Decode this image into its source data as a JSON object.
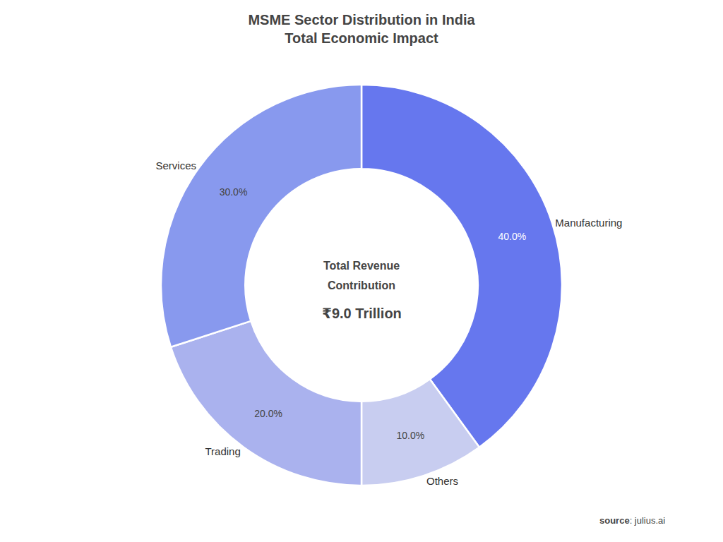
{
  "chart_data": {
    "type": "donut",
    "title": "MSME Sector Distribution in India",
    "subtitle": "Total Economic Impact",
    "categories": [
      "Manufacturing",
      "Others",
      "Trading",
      "Services"
    ],
    "values": [
      40.0,
      10.0,
      20.0,
      30.0
    ],
    "value_labels": [
      "40.0%",
      "10.0%",
      "20.0%",
      "30.0%"
    ],
    "colors": [
      "#6677ee",
      "#c8cdf0",
      "#aab2ee",
      "#8899ee"
    ],
    "data_labels": true,
    "annotations": [
      "Total Revenue",
      "Contribution",
      "₹9.0 Trillion",
      "source",
      ": julius.ai"
    ]
  }
}
